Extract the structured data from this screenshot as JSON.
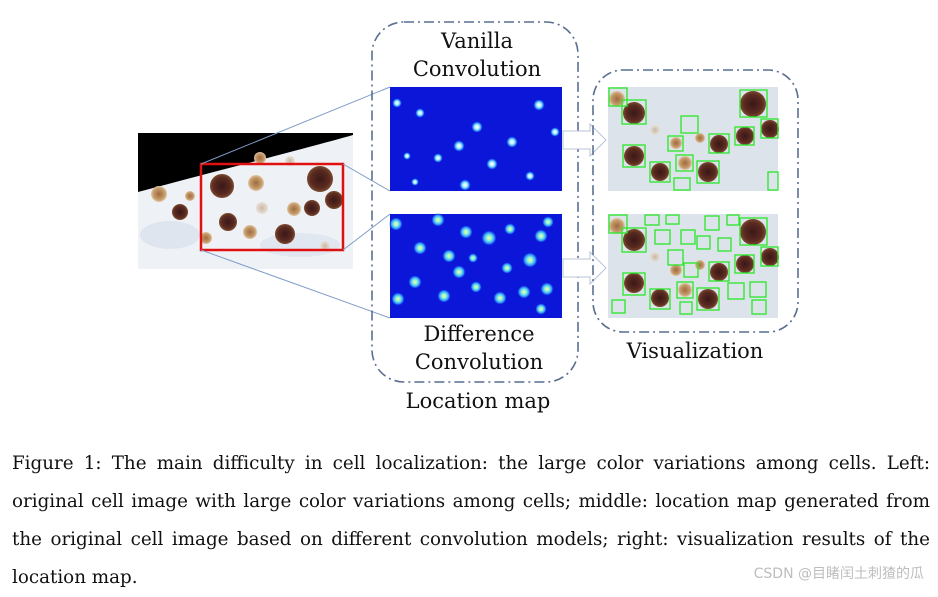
{
  "figure": {
    "labels": {
      "vanilla": [
        "Vanilla",
        "Convolution"
      ],
      "difference": [
        "Difference",
        "Convolution"
      ],
      "location_map": "Location map",
      "visualization": "Visualization"
    },
    "colors": {
      "map_blue": "#0b16d8",
      "dot_cyan": "#9ff3ff",
      "box_green": "#29e829",
      "highlight_red": "#e01010",
      "dash_border": "#5a6f90",
      "connector": "#6f8fc0"
    }
  },
  "caption": {
    "text": "Figure 1: The main difficulty in cell localization: the large color variations among cells. Left: original cell image with large color variations among cells; middle: location map generated from the original cell image based on different convolution models; right: visualization results of the location map."
  },
  "watermark": "CSDN @目睹闰土刺猹的瓜"
}
